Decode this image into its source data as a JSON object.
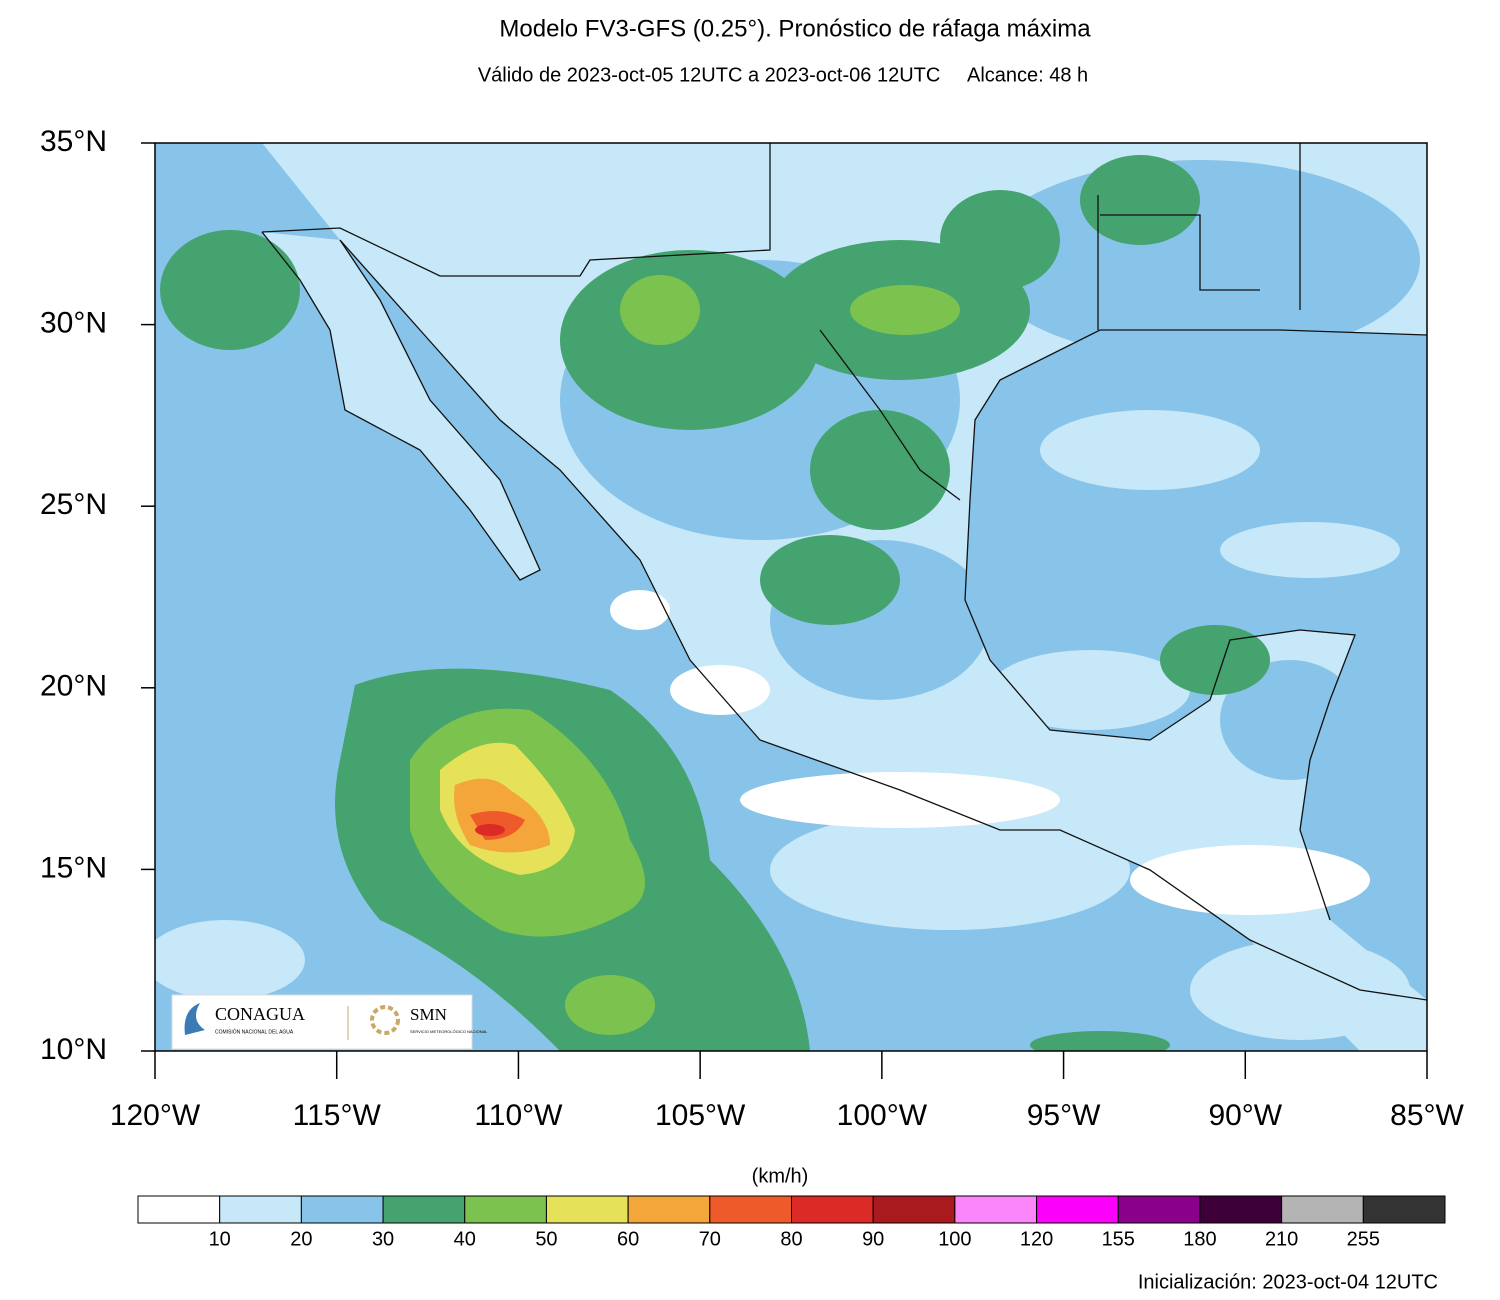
{
  "title": "Modelo FV3-GFS (0.25°). Pronóstico de ráfaga máxima",
  "subtitle": "Válido de 2023-oct-05 12UTC a 2023-oct-06 12UTC     Alcance: 48 h",
  "map": {
    "lat_lim": [
      10,
      35
    ],
    "lon_lim": [
      -120,
      -85
    ],
    "lat_ticks": [
      {
        "value": 35,
        "label": "35°N"
      },
      {
        "value": 30,
        "label": "30°N"
      },
      {
        "value": 25,
        "label": "25°N"
      },
      {
        "value": 20,
        "label": "20°N"
      },
      {
        "value": 15,
        "label": "15°N"
      },
      {
        "value": 10,
        "label": "10°N"
      }
    ],
    "lon_ticks": [
      {
        "value": -120,
        "label": "120°W"
      },
      {
        "value": -115,
        "label": "115°W"
      },
      {
        "value": -110,
        "label": "110°W"
      },
      {
        "value": -105,
        "label": "105°W"
      },
      {
        "value": -100,
        "label": "100°W"
      },
      {
        "value": -95,
        "label": "95°W"
      },
      {
        "value": -90,
        "label": "90°W"
      },
      {
        "value": -85,
        "label": "85°W"
      }
    ]
  },
  "logos": {
    "conagua": "CONAGUA",
    "conagua_sub": "COMISIÓN NACIONAL DEL AGUA",
    "smn": "SMN",
    "smn_sub": "SERVICIO METEOROLÓGICO NACIONAL"
  },
  "colorbar": {
    "unit": "(km/h)",
    "colors": [
      "#ffffff",
      "#c6e8f8",
      "#88c4ea",
      "#44a36e",
      "#7cc24f",
      "#e5e25a",
      "#f5a63a",
      "#ef5a2a",
      "#dc2a27",
      "#a81a1e",
      "#fb86fb",
      "#fb00fb",
      "#8a008a",
      "#3d0039",
      "#b4b4b4",
      "#333333"
    ],
    "ticks": [
      10,
      20,
      30,
      40,
      50,
      60,
      70,
      80,
      90,
      100,
      120,
      155,
      180,
      210,
      255
    ]
  },
  "footer": "Inicialización: 2023-oct-04 12UTC"
}
